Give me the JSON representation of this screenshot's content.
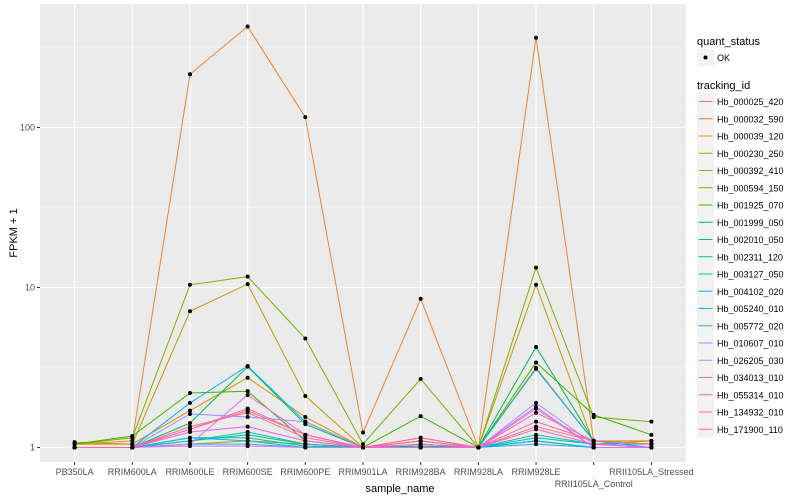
{
  "chart_data": {
    "type": "line",
    "xlabel": "sample_name",
    "ylabel": "FPKM + 1",
    "y_scale": "log10",
    "ylim": [
      0.8,
      580
    ],
    "y_ticks": [
      1,
      10,
      100
    ],
    "y_tick_labels": [
      "1",
      "10",
      "100"
    ],
    "grid": true,
    "legend_position": "right",
    "categories": [
      "PB350LA",
      "RRIM600LA",
      "RRIM600LE",
      "RRIM600SE",
      "RRIM600PE",
      "RRIM901LA",
      "RRIM928BA",
      "RRIM928LA",
      "RRIM928LE",
      "RRII105LA_Control",
      "RRII105LA_Stressed"
    ],
    "shape_legend": {
      "title": "quant_status",
      "entries": [
        "OK"
      ]
    },
    "color_legend_title": "tracking_id",
    "series": [
      {
        "name": "Hb_000025_420",
        "color": "#F8766D",
        "values": [
          1.0,
          1.0,
          1.3,
          1.7,
          1.2,
          1.0,
          1.1,
          1.0,
          1.35,
          1.1,
          1.05
        ]
      },
      {
        "name": "Hb_000032_590",
        "color": "#EA8331",
        "values": [
          1.05,
          1.1,
          215,
          428,
          116,
          1.24,
          8.5,
          1.0,
          364,
          1.1,
          1.05
        ]
      },
      {
        "name": "Hb_000039_120",
        "color": "#D89000",
        "values": [
          1.05,
          1.05,
          1.7,
          2.73,
          1.55,
          1.0,
          1.15,
          1.0,
          3.15,
          1.1,
          1.1
        ]
      },
      {
        "name": "Hb_000230_250",
        "color": "#C09B00",
        "values": [
          1.08,
          1.05,
          7.1,
          10.5,
          2.1,
          1.0,
          1.1,
          1.0,
          10.4,
          1.05,
          1.1
        ]
      },
      {
        "name": "Hb_000392_410",
        "color": "#A3A500",
        "values": [
          1.0,
          1.0,
          1.05,
          1.1,
          1.05,
          1.0,
          1.02,
          1.0,
          1.1,
          1.0,
          1.0
        ]
      },
      {
        "name": "Hb_000594_150",
        "color": "#7CAE00",
        "values": [
          1.05,
          1.15,
          10.4,
          11.7,
          4.8,
          1.05,
          2.68,
          1.0,
          13.3,
          1.55,
          1.45
        ]
      },
      {
        "name": "Hb_001925_070",
        "color": "#39B600",
        "values": [
          1.05,
          1.18,
          2.19,
          2.25,
          1.1,
          1.0,
          1.57,
          1.0,
          3.4,
          1.6,
          1.2
        ]
      },
      {
        "name": "Hb_001999_050",
        "color": "#00BB4E",
        "values": [
          1.0,
          1.0,
          1.42,
          3.2,
          1.4,
          1.0,
          1.05,
          1.0,
          4.25,
          1.1,
          1.05
        ]
      },
      {
        "name": "Hb_002010_050",
        "color": "#00BF7D",
        "values": [
          1.0,
          1.0,
          1.1,
          1.2,
          1.05,
          1.0,
          1.02,
          1.0,
          1.1,
          1.0,
          1.0
        ]
      },
      {
        "name": "Hb_002311_120",
        "color": "#00C1A3",
        "values": [
          1.0,
          1.0,
          1.15,
          1.15,
          1.02,
          1.0,
          1.0,
          1.0,
          1.15,
          1.05,
          1.05
        ]
      },
      {
        "name": "Hb_003127_050",
        "color": "#00BFC4",
        "values": [
          1.0,
          1.0,
          1.1,
          1.25,
          1.05,
          1.0,
          1.0,
          1.0,
          1.2,
          1.05,
          1.0
        ]
      },
      {
        "name": "Hb_004102_020",
        "color": "#00BAE0",
        "values": [
          1.0,
          1.0,
          1.15,
          1.1,
          1.0,
          1.0,
          1.0,
          1.0,
          1.1,
          1.0,
          1.0
        ]
      },
      {
        "name": "Hb_005240_010",
        "color": "#00B0F6",
        "values": [
          1.0,
          1.0,
          1.9,
          3.23,
          1.45,
          1.0,
          1.0,
          1.0,
          3.1,
          1.1,
          1.0
        ]
      },
      {
        "name": "Hb_005772_020",
        "color": "#35A2FF",
        "values": [
          1.0,
          1.0,
          1.05,
          1.05,
          1.0,
          1.0,
          1.0,
          1.0,
          1.05,
          1.0,
          1.0
        ]
      },
      {
        "name": "Hb_010607_010",
        "color": "#9590FF",
        "values": [
          1.0,
          1.0,
          1.62,
          1.55,
          1.45,
          1.0,
          1.0,
          1.0,
          1.9,
          1.05,
          1.0
        ]
      },
      {
        "name": "Hb_026205_030",
        "color": "#C77CFF",
        "values": [
          1.0,
          1.0,
          1.02,
          1.02,
          1.0,
          1.0,
          1.0,
          1.0,
          1.75,
          1.0,
          1.0
        ]
      },
      {
        "name": "Hb_034013_010",
        "color": "#E76BF3",
        "values": [
          1.0,
          1.0,
          1.05,
          2.13,
          1.2,
          1.0,
          1.0,
          1.0,
          1.8,
          1.0,
          1.0
        ]
      },
      {
        "name": "Hb_055314_010",
        "color": "#FA62DB",
        "values": [
          1.0,
          1.0,
          1.25,
          1.35,
          1.1,
          1.0,
          1.05,
          1.0,
          1.3,
          1.05,
          1.0
        ]
      },
      {
        "name": "Hb_134932_010",
        "color": "#FF62BC",
        "values": [
          1.0,
          1.0,
          1.3,
          1.75,
          1.2,
          1.0,
          1.15,
          1.0,
          1.45,
          1.1,
          1.05
        ]
      },
      {
        "name": "Hb_171900_110",
        "color": "#FF6C91",
        "values": [
          1.0,
          1.0,
          1.35,
          1.65,
          1.15,
          1.0,
          1.1,
          1.0,
          1.65,
          1.1,
          1.05
        ]
      }
    ]
  }
}
